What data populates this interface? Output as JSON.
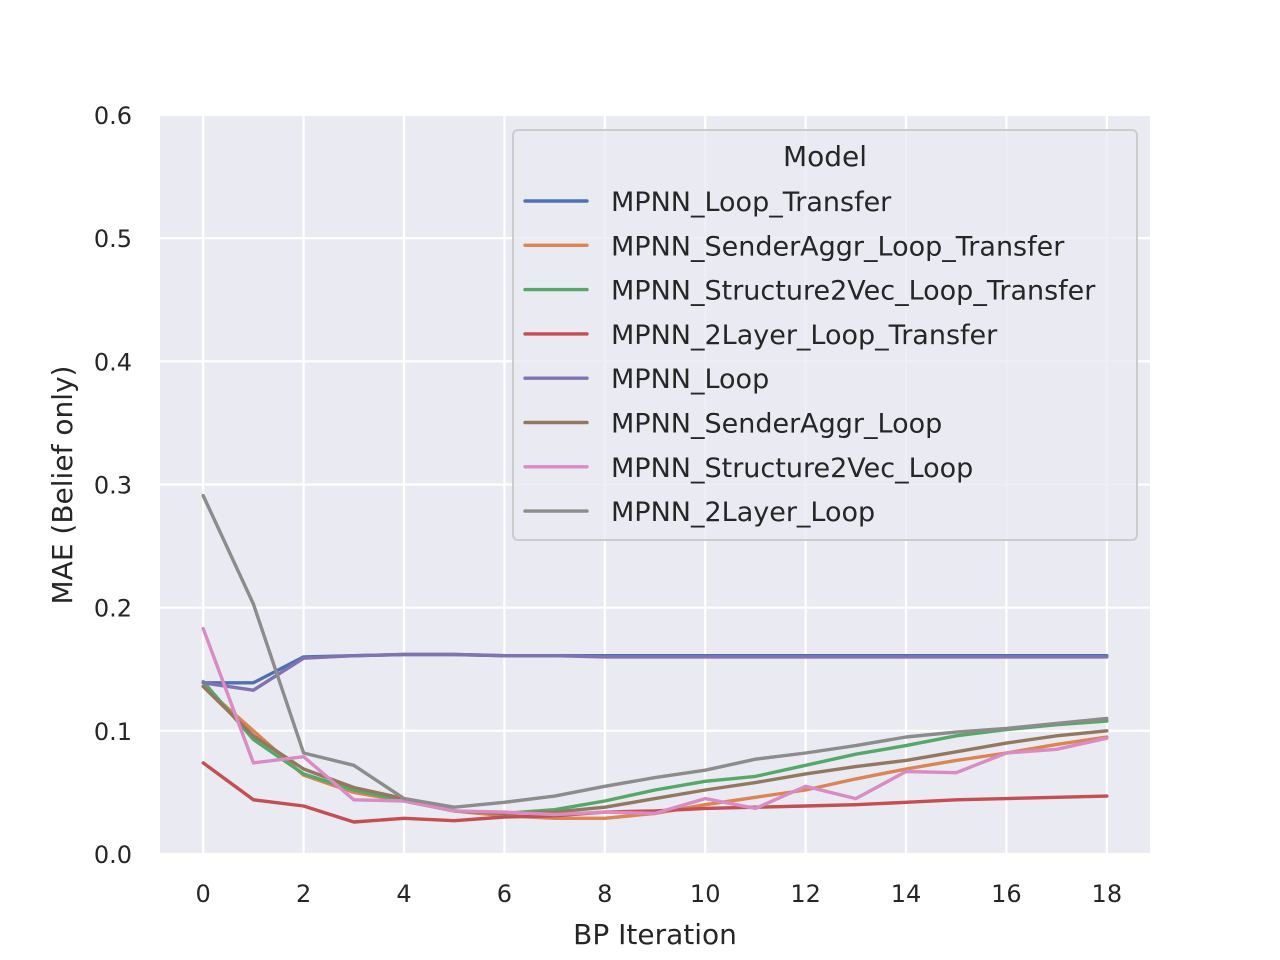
{
  "chart_data": {
    "type": "line",
    "title": "",
    "xlabel": "BP Iteration",
    "ylabel": "MAE (Belief only)",
    "xlim": [
      -0.86,
      18.86
    ],
    "ylim": [
      0,
      0.6
    ],
    "xticks": [
      0,
      2,
      4,
      6,
      8,
      10,
      12,
      14,
      16,
      18
    ],
    "yticks": [
      0.0,
      0.1,
      0.2,
      0.3,
      0.4,
      0.5,
      0.6
    ],
    "ytick_labels": [
      "0.0",
      "0.1",
      "0.2",
      "0.3",
      "0.4",
      "0.5",
      "0.6"
    ],
    "grid": true,
    "legend_title": "Model",
    "legend_position": "top-right",
    "x": [
      0,
      1,
      2,
      3,
      4,
      5,
      6,
      7,
      8,
      9,
      10,
      11,
      12,
      13,
      14,
      15,
      16,
      17,
      18
    ],
    "series": [
      {
        "name": "MPNN_Loop_Transfer",
        "color": "#4c72b0",
        "values": [
          0.139,
          0.139,
          0.16,
          0.161,
          0.162,
          0.162,
          0.161,
          0.161,
          0.161,
          0.161,
          0.161,
          0.161,
          0.161,
          0.161,
          0.161,
          0.161,
          0.161,
          0.161,
          0.161
        ]
      },
      {
        "name": "MPNN_SenderAggr_Loop_Transfer",
        "color": "#dd8452",
        "values": [
          0.136,
          0.1,
          0.064,
          0.05,
          0.043,
          0.035,
          0.031,
          0.029,
          0.029,
          0.033,
          0.04,
          0.046,
          0.052,
          0.061,
          0.069,
          0.076,
          0.082,
          0.089,
          0.095
        ]
      },
      {
        "name": "MPNN_Structure2Vec_Loop_Transfer",
        "color": "#55a868",
        "values": [
          0.14,
          0.093,
          0.065,
          0.052,
          0.043,
          0.035,
          0.033,
          0.036,
          0.043,
          0.052,
          0.059,
          0.063,
          0.072,
          0.081,
          0.088,
          0.096,
          0.101,
          0.105,
          0.108
        ]
      },
      {
        "name": "MPNN_2Layer_Loop_Transfer",
        "color": "#c44e52",
        "values": [
          0.074,
          0.044,
          0.039,
          0.026,
          0.029,
          0.027,
          0.03,
          0.031,
          0.034,
          0.035,
          0.037,
          0.038,
          0.039,
          0.04,
          0.042,
          0.044,
          0.045,
          0.046,
          0.047
        ]
      },
      {
        "name": "MPNN_Loop",
        "color": "#8172b3",
        "values": [
          0.139,
          0.133,
          0.159,
          0.161,
          0.162,
          0.162,
          0.161,
          0.161,
          0.16,
          0.16,
          0.16,
          0.16,
          0.16,
          0.16,
          0.16,
          0.16,
          0.16,
          0.16,
          0.16
        ]
      },
      {
        "name": "MPNN_SenderAggr_Loop",
        "color": "#937860",
        "values": [
          0.136,
          0.096,
          0.069,
          0.054,
          0.045,
          0.035,
          0.033,
          0.034,
          0.038,
          0.045,
          0.052,
          0.058,
          0.065,
          0.071,
          0.076,
          0.083,
          0.09,
          0.096,
          0.1
        ]
      },
      {
        "name": "MPNN_Structure2Vec_Loop",
        "color": "#da8bc3",
        "values": [
          0.183,
          0.074,
          0.079,
          0.044,
          0.043,
          0.035,
          0.034,
          0.032,
          0.034,
          0.033,
          0.045,
          0.037,
          0.055,
          0.045,
          0.067,
          0.066,
          0.082,
          0.085,
          0.094
        ]
      },
      {
        "name": "MPNN_2Layer_Loop",
        "color": "#8c8c8c",
        "values": [
          0.291,
          0.203,
          0.082,
          0.072,
          0.045,
          0.038,
          0.042,
          0.047,
          0.055,
          0.062,
          0.068,
          0.077,
          0.082,
          0.088,
          0.095,
          0.099,
          0.102,
          0.106,
          0.11
        ]
      }
    ]
  }
}
